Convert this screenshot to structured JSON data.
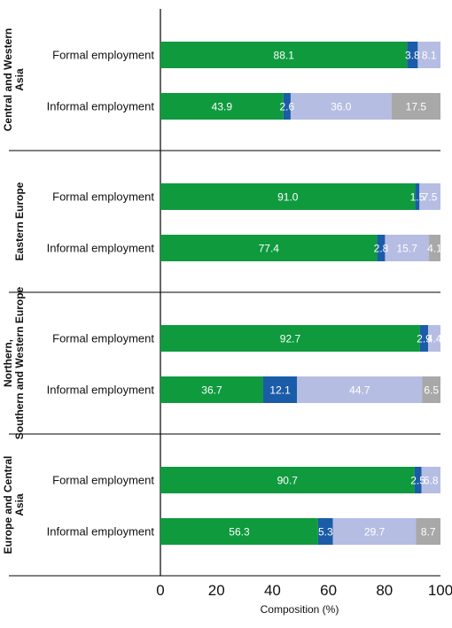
{
  "chart_data": {
    "type": "bar",
    "orientation": "horizontal",
    "stacked": true,
    "title": "",
    "xlabel": "Composition (%)",
    "ylabel": "",
    "xlim": [
      0,
      100
    ],
    "xticks": [
      0,
      20,
      40,
      60,
      80,
      100
    ],
    "grid": false,
    "legend": "none",
    "segment_colors": [
      "#0f9a3e",
      "#1a5ca8",
      "#b6bde3",
      "#a8a8a8"
    ],
    "groups": [
      {
        "name": "Central and Western Asia",
        "rows": [
          {
            "label": "Formal employment",
            "values": [
              88.1,
              3.8,
              8.1
            ]
          },
          {
            "label": "Informal employment",
            "values": [
              43.9,
              2.6,
              36.0,
              17.5
            ]
          }
        ]
      },
      {
        "name": "Eastern Europe",
        "rows": [
          {
            "label": "Formal employment",
            "values": [
              91.0,
              1.5,
              7.5
            ]
          },
          {
            "label": "Informal employment",
            "values": [
              77.4,
              2.8,
              15.7,
              4.1
            ]
          }
        ]
      },
      {
        "name": "Northern, Southern and Western Europe",
        "rows": [
          {
            "label": "Formal employment",
            "values": [
              92.7,
              2.9,
              4.4
            ]
          },
          {
            "label": "Informal employment",
            "values": [
              36.7,
              12.1,
              44.7,
              6.5
            ]
          }
        ]
      },
      {
        "name": "Europe and Central Asia",
        "rows": [
          {
            "label": "Formal employment",
            "values": [
              90.7,
              2.5,
              6.8
            ]
          },
          {
            "label": "Informal employment",
            "values": [
              56.3,
              5.3,
              29.7,
              8.7
            ]
          }
        ]
      }
    ]
  }
}
